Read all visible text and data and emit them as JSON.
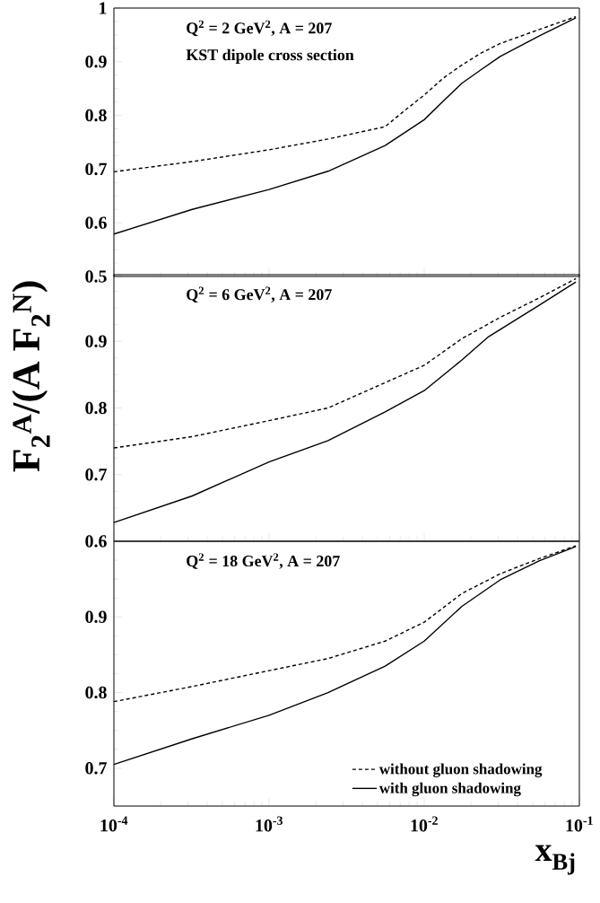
{
  "chart_data": [
    {
      "type": "line",
      "log": "x",
      "xlim": [
        0.0001,
        0.1
      ],
      "xticks": [
        {
          "value": 0.0001,
          "label": null
        },
        {
          "value": 0.001,
          "label": null
        },
        {
          "value": 0.01,
          "label": null
        },
        {
          "value": 0.1,
          "label": null
        }
      ],
      "ylim": [
        0.5,
        1
      ],
      "yticks": [
        0.5,
        0.6,
        0.7,
        0.8,
        0.9,
        1
      ],
      "tick_labels": "y",
      "annotations": [
        "Q$^{2}$ = 2 GeV$^{2}$, A = 207",
        "KST dipole cross section"
      ],
      "series": [
        {
          "color": "#000000",
          "line_style": "dashed",
          "x": [
            0.0001,
            0.00032,
            0.001,
            0.0024,
            0.0056,
            0.0074,
            0.01,
            0.0132,
            0.0175,
            0.0232,
            0.0309,
            0.055,
            0.095
          ],
          "values": [
            0.695,
            0.714,
            0.736,
            0.756,
            0.779,
            0.808,
            0.838,
            0.869,
            0.894,
            0.916,
            0.934,
            0.96,
            0.984
          ]
        },
        {
          "color": "#000000",
          "line_style": "solid",
          "x": [
            0.0001,
            0.00032,
            0.001,
            0.0024,
            0.0056,
            0.01,
            0.0132,
            0.0175,
            0.0232,
            0.0309,
            0.055,
            0.095
          ],
          "values": [
            0.579,
            0.625,
            0.662,
            0.696,
            0.744,
            0.792,
            0.826,
            0.86,
            0.885,
            0.91,
            0.948,
            0.982
          ]
        }
      ]
    },
    {
      "type": "line",
      "log": "x",
      "xlim": [
        0.0001,
        0.1
      ],
      "xticks": [
        {
          "value": 0.0001,
          "label": null
        },
        {
          "value": 0.001,
          "label": null
        },
        {
          "value": 0.01,
          "label": null
        },
        {
          "value": 0.1,
          "label": null
        }
      ],
      "ylim": [
        0.6,
        1
      ],
      "yticks": [
        0.6,
        0.7,
        0.8,
        0.9,
        {
          "value": 1,
          "label": null
        }
      ],
      "tick_labels": "y",
      "ylabel": "F$_{2}$$^{A}$/(A F$_{2}$$^{N}$)",
      "annotations": [
        "Q$^{2}$ = 6 GeV$^{2}$, A = 207"
      ],
      "series": [
        {
          "color": "#000000",
          "line_style": "dashed",
          "x": [
            0.0001,
            0.00032,
            0.001,
            0.0024,
            0.0056,
            0.01,
            0.0175,
            0.0309,
            0.055,
            0.095
          ],
          "values": [
            0.74,
            0.757,
            0.781,
            0.8,
            0.838,
            0.864,
            0.904,
            0.936,
            0.965,
            0.994
          ]
        },
        {
          "color": "#000000",
          "line_style": "solid",
          "x": [
            0.0001,
            0.00032,
            0.001,
            0.0024,
            0.0056,
            0.01,
            0.0175,
            0.026,
            0.055,
            0.095
          ],
          "values": [
            0.628,
            0.668,
            0.719,
            0.751,
            0.794,
            0.826,
            0.872,
            0.907,
            0.954,
            0.989
          ]
        }
      ]
    },
    {
      "type": "line",
      "log": "x",
      "xlim": [
        0.0001,
        0.1
      ],
      "xticks": [
        {
          "value": 0.0001,
          "label": "10$^{-4}$"
        },
        {
          "value": 0.001,
          "label": "10$^{-3}$"
        },
        {
          "value": 0.01,
          "label": "10$^{-2}$"
        },
        {
          "value": 0.1,
          "label": "10$^{-1}$"
        }
      ],
      "ylim": [
        0.65,
        1
      ],
      "yticks": [
        0.7,
        0.8,
        0.9,
        {
          "value": 1,
          "label": null
        }
      ],
      "xlabel": "x$_{Bj}$",
      "legend": "bottom right",
      "annotations": [
        "Q$^{2}$ = 18 GeV$^{2}$, A = 207"
      ],
      "series": [
        {
          "name": "without gluon shadowing",
          "color": "#000000",
          "line_style": "dashed",
          "x": [
            0.0001,
            0.00032,
            0.001,
            0.0024,
            0.0056,
            0.01,
            0.0175,
            0.0309,
            0.055,
            0.095
          ],
          "values": [
            0.788,
            0.808,
            0.829,
            0.845,
            0.868,
            0.893,
            0.931,
            0.957,
            0.977,
            0.994
          ]
        },
        {
          "name": "with gluon shadowing",
          "color": "#000000",
          "line_style": "solid",
          "x": [
            0.0001,
            0.00032,
            0.001,
            0.0024,
            0.0056,
            0.01,
            0.0175,
            0.0309,
            0.055,
            0.095
          ],
          "values": [
            0.705,
            0.739,
            0.77,
            0.8,
            0.835,
            0.868,
            0.914,
            0.949,
            0.974,
            0.993
          ]
        }
      ]
    }
  ]
}
